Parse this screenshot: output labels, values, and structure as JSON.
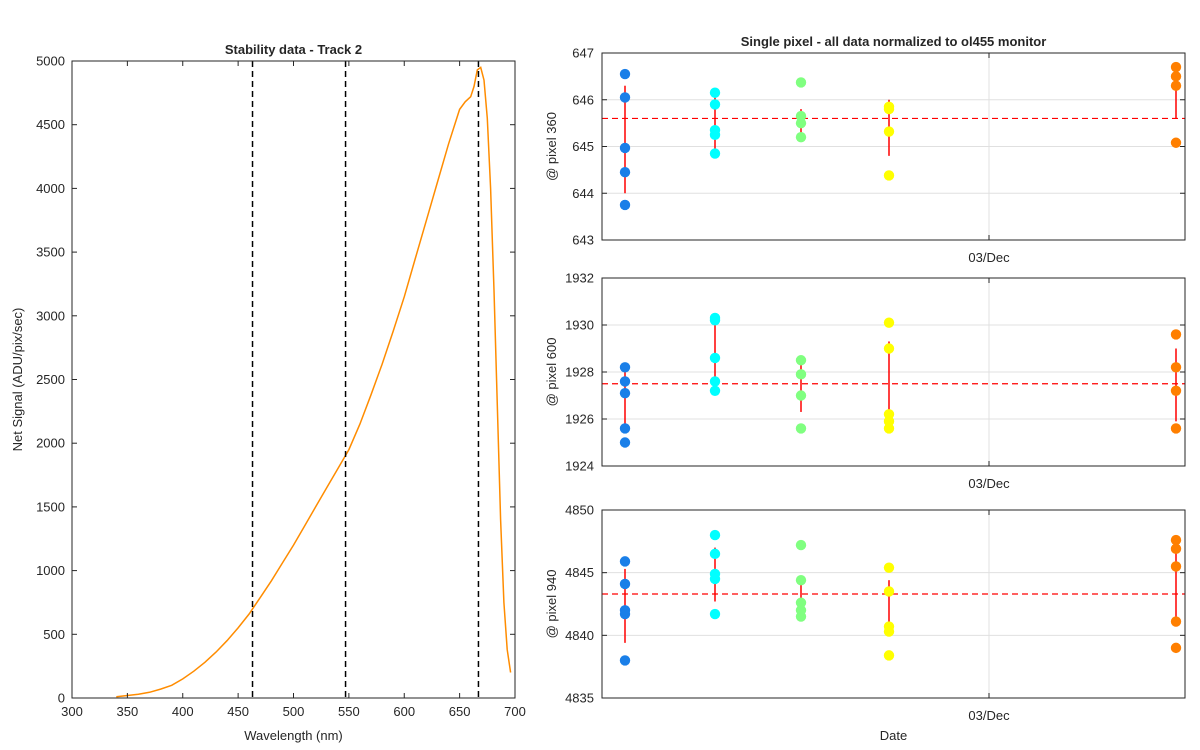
{
  "chart_data": [
    {
      "type": "line",
      "title": "Stability data - Track 2",
      "xlabel": "Wavelength (nm)",
      "ylabel": "Net Signal (ADU/pix/sec)",
      "xlim": [
        300,
        700
      ],
      "ylim": [
        0,
        5000
      ],
      "xticks": [
        300,
        350,
        400,
        450,
        500,
        550,
        600,
        650,
        700
      ],
      "yticks": [
        0,
        500,
        1000,
        1500,
        2000,
        2500,
        3000,
        3500,
        4000,
        4500,
        5000
      ],
      "grid": false,
      "series": [
        {
          "color": "#ff8c00",
          "x": [
            340,
            350,
            360,
            370,
            380,
            390,
            400,
            410,
            420,
            430,
            440,
            450,
            460,
            470,
            480,
            490,
            500,
            510,
            520,
            530,
            540,
            550,
            560,
            570,
            580,
            590,
            600,
            610,
            620,
            630,
            640,
            650,
            655,
            660,
            663,
            666,
            669,
            672,
            675,
            678,
            681,
            684,
            687,
            690,
            693,
            696
          ],
          "y": [
            10,
            20,
            30,
            45,
            70,
            100,
            150,
            210,
            280,
            360,
            450,
            550,
            660,
            790,
            920,
            1060,
            1200,
            1350,
            1500,
            1650,
            1800,
            1950,
            2150,
            2380,
            2620,
            2880,
            3150,
            3450,
            3750,
            4050,
            4350,
            4620,
            4680,
            4720,
            4800,
            4930,
            4950,
            4850,
            4550,
            4000,
            3200,
            2300,
            1400,
            750,
            380,
            200
          ]
        }
      ],
      "vlines": [
        463,
        547,
        667
      ]
    },
    {
      "type": "scatter",
      "title": "Single pixel - all data normalized to ol455 monitor",
      "ylabel": "@ pixel 360",
      "xticklabels": [
        "03/Dec"
      ],
      "ylim": [
        643,
        647
      ],
      "yticks": [
        643,
        644,
        645,
        646,
        647
      ],
      "grid": true,
      "mean_line": 645.6,
      "groups": [
        {
          "color": "#1a7fe8",
          "values": [
            646.55,
            646.05,
            644.97,
            644.45,
            643.75
          ],
          "errorbar": [
            644.0,
            646.3
          ]
        },
        {
          "color": "#00ffff",
          "values": [
            646.15,
            645.9,
            645.35,
            645.25,
            644.85
          ],
          "errorbar": [
            644.9,
            646.1
          ]
        },
        {
          "color": "#80ff80",
          "values": [
            646.37,
            645.65,
            645.5,
            645.2
          ],
          "errorbar": [
            645.2,
            645.8
          ]
        },
        {
          "color": "#ffff00",
          "values": [
            645.85,
            645.8,
            645.32,
            644.38
          ],
          "errorbar": [
            644.8,
            646.0
          ]
        },
        {
          "color": "#ff7f00",
          "values": [
            646.7,
            646.5,
            646.3,
            645.08
          ],
          "errorbar": [
            645.6,
            646.65
          ]
        }
      ]
    },
    {
      "type": "scatter",
      "ylabel": "@ pixel 600",
      "xticklabels": [
        "03/Dec"
      ],
      "ylim": [
        1924,
        1932
      ],
      "yticks": [
        1924,
        1926,
        1928,
        1930,
        1932
      ],
      "grid": true,
      "mean_line": 1927.5,
      "groups": [
        {
          "color": "#1a7fe8",
          "values": [
            1928.2,
            1927.6,
            1927.1,
            1925.6,
            1925.0
          ],
          "errorbar": [
            1925.8,
            1928.1
          ]
        },
        {
          "color": "#00ffff",
          "values": [
            1930.3,
            1930.2,
            1928.6,
            1927.6,
            1927.2
          ],
          "errorbar": [
            1927.2,
            1930.2
          ]
        },
        {
          "color": "#80ff80",
          "values": [
            1928.5,
            1927.9,
            1927.0,
            1925.6
          ],
          "errorbar": [
            1926.3,
            1928.6
          ]
        },
        {
          "color": "#ffff00",
          "values": [
            1930.1,
            1929.0,
            1926.2,
            1925.9,
            1925.6
          ],
          "errorbar": [
            1925.6,
            1929.3
          ]
        },
        {
          "color": "#ff7f00",
          "values": [
            1929.6,
            1928.2,
            1927.2,
            1925.6
          ],
          "errorbar": [
            1925.9,
            1929.0
          ]
        }
      ]
    },
    {
      "type": "scatter",
      "ylabel": "@ pixel 940",
      "xlabel": "Date",
      "xticklabels": [
        "03/Dec"
      ],
      "ylim": [
        4835,
        4850
      ],
      "yticks": [
        4835,
        4840,
        4845,
        4850
      ],
      "grid": true,
      "mean_line": 4843.3,
      "groups": [
        {
          "color": "#1a7fe8",
          "values": [
            4845.9,
            4844.1,
            4842.0,
            4841.7,
            4838.0
          ],
          "errorbar": [
            4839.4,
            4845.3
          ]
        },
        {
          "color": "#00ffff",
          "values": [
            4848.0,
            4846.5,
            4844.9,
            4844.5,
            4841.7
          ],
          "errorbar": [
            4842.7,
            4847.0
          ]
        },
        {
          "color": "#80ff80",
          "values": [
            4847.2,
            4844.4,
            4842.6,
            4842.0,
            4841.5
          ],
          "errorbar": [
            4841.8,
            4844.7
          ]
        },
        {
          "color": "#ffff00",
          "values": [
            4845.4,
            4843.5,
            4840.7,
            4840.3,
            4838.4
          ],
          "errorbar": [
            4840.2,
            4844.4
          ]
        },
        {
          "color": "#ff7f00",
          "values": [
            4847.6,
            4846.9,
            4845.5,
            4841.1,
            4839.0
          ],
          "errorbar": [
            4840.7,
            4847.2
          ]
        }
      ]
    }
  ]
}
